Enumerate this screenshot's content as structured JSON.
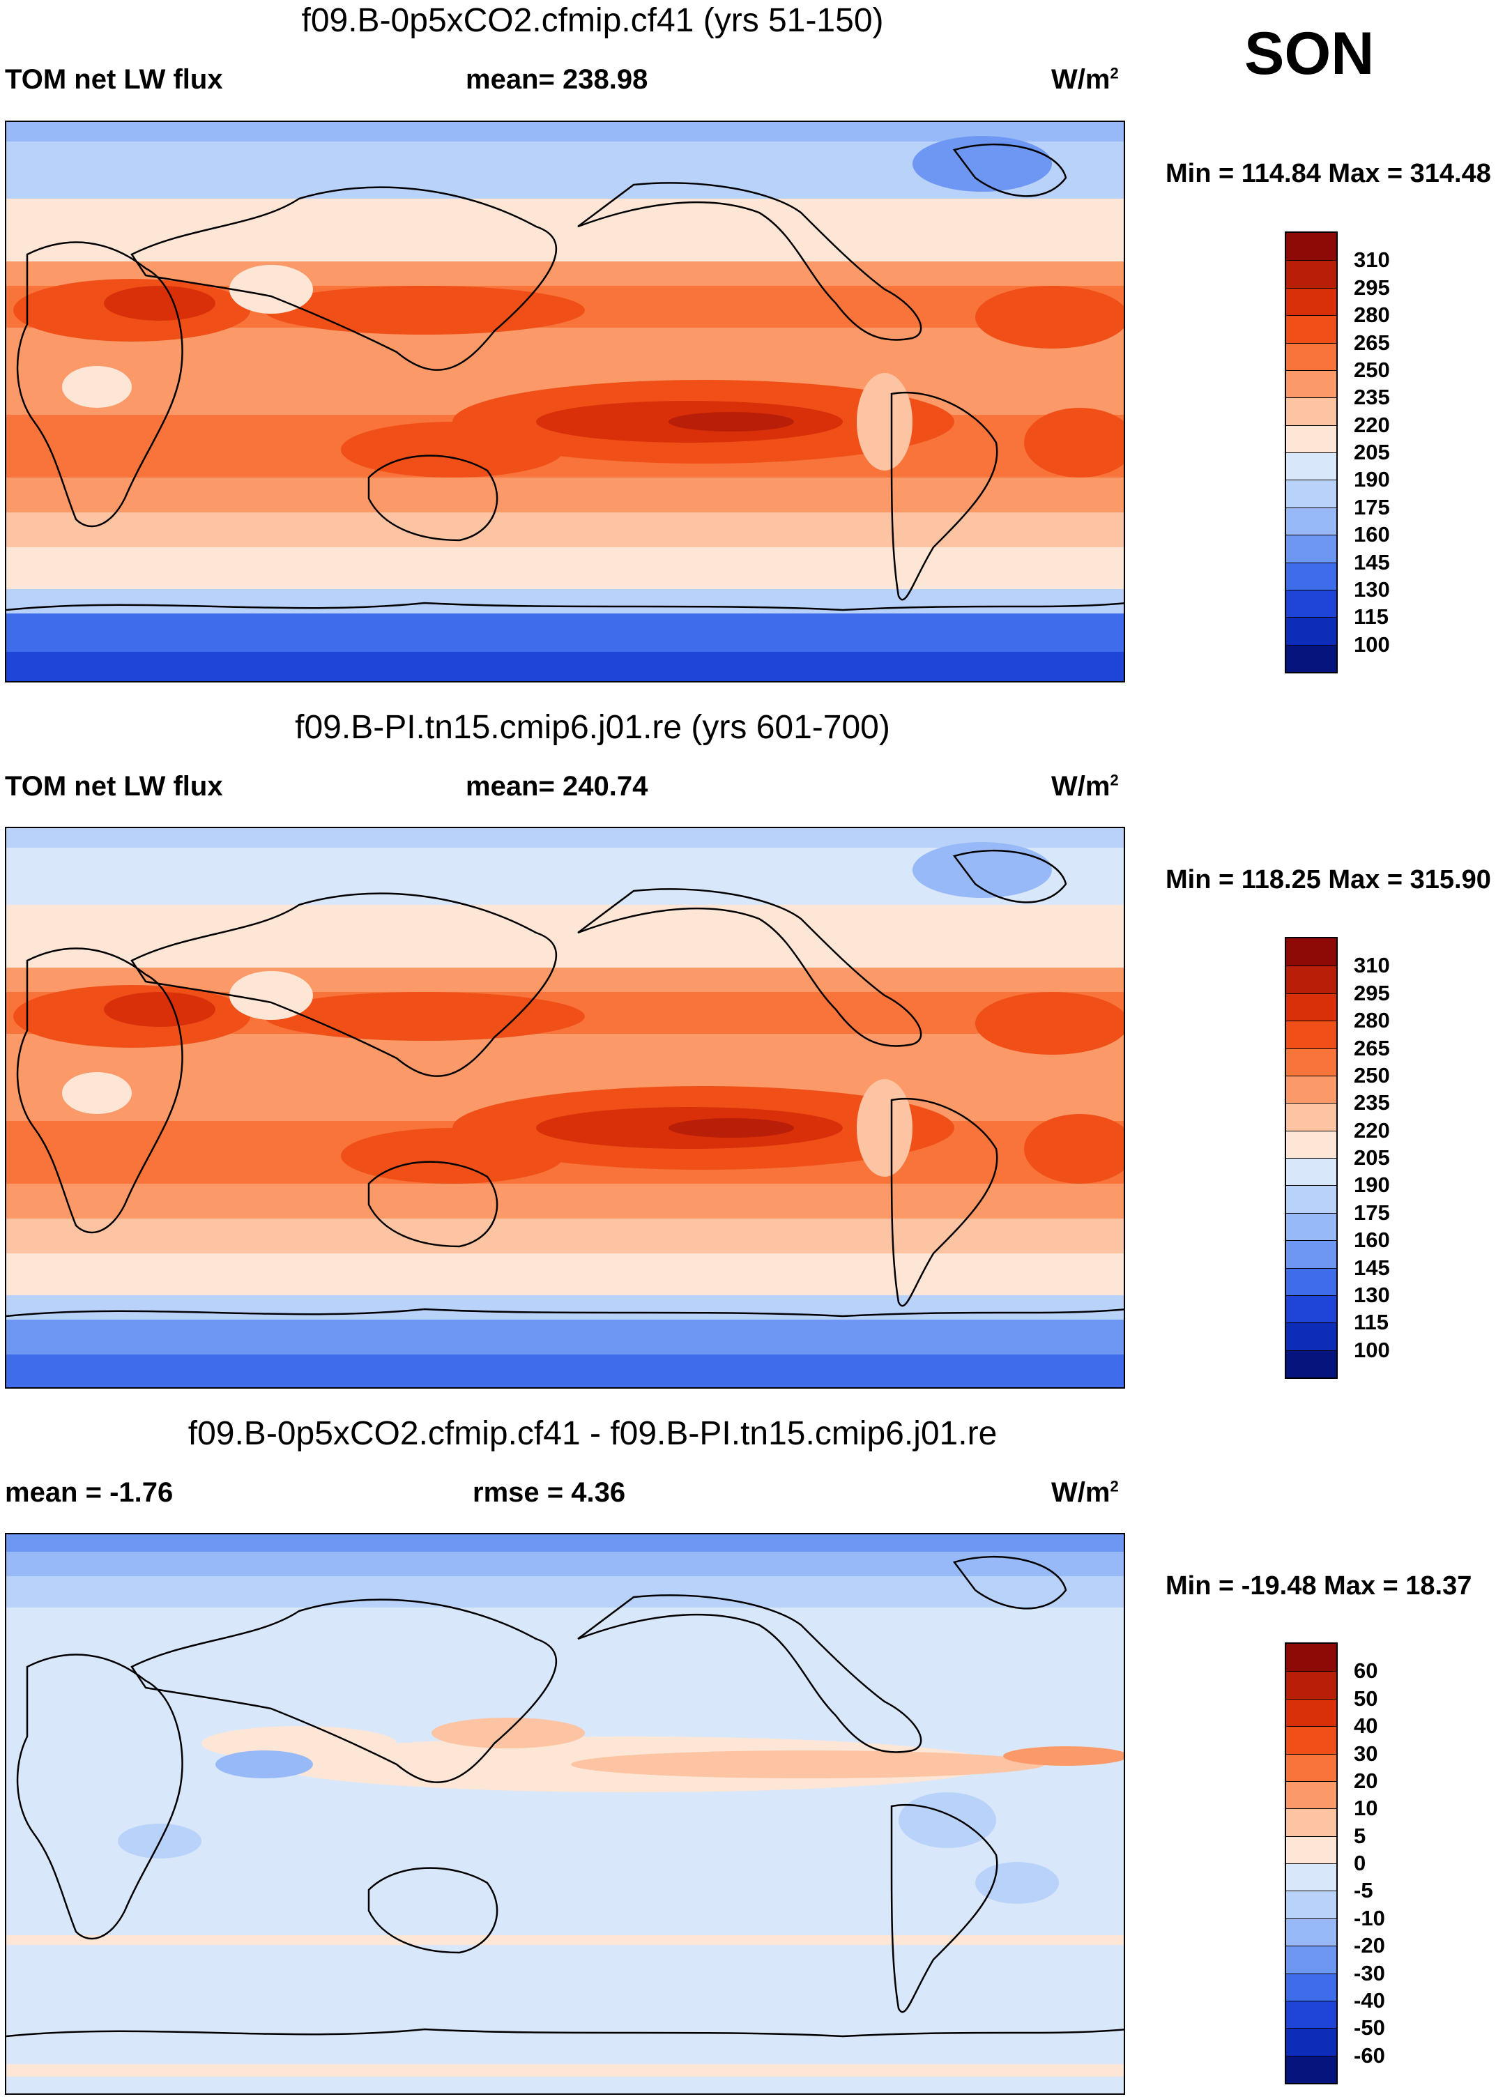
{
  "season": "SON",
  "panels": [
    {
      "id": "panel1",
      "title": "f09.B-0p5xCO2.cfmip.cf41 (yrs 51-150)",
      "left_label": "TOM net LW flux",
      "stat_label": "mean= 238.98",
      "unit_base": "W/m",
      "unit_exp": "2",
      "minmax": "Min = 114.84 Max = 314.48",
      "colorbar": {
        "labels": [
          "310",
          "295",
          "280",
          "265",
          "250",
          "235",
          "220",
          "205",
          "190",
          "175",
          "160",
          "145",
          "130",
          "115",
          "100"
        ],
        "colors": [
          "#8e0a06",
          "#b81e08",
          "#d93009",
          "#f05018",
          "#f8743a",
          "#fb9a68",
          "#fcc4a2",
          "#fde6d6",
          "#d9e7fb",
          "#b9d2fa",
          "#97b9f7",
          "#6d97f2",
          "#3f6cea",
          "#1f45d8",
          "#0d2cb8",
          "#06157e"
        ]
      }
    },
    {
      "id": "panel2",
      "title": "f09.B-PI.tn15.cmip6.j01.re (yrs 601-700)",
      "left_label": "TOM net LW flux",
      "stat_label": "mean= 240.74",
      "unit_base": "W/m",
      "unit_exp": "2",
      "minmax": "Min = 118.25 Max = 315.90",
      "colorbar": {
        "labels": [
          "310",
          "295",
          "280",
          "265",
          "250",
          "235",
          "220",
          "205",
          "190",
          "175",
          "160",
          "145",
          "130",
          "115",
          "100"
        ],
        "colors": [
          "#8e0a06",
          "#b81e08",
          "#d93009",
          "#f05018",
          "#f8743a",
          "#fb9a68",
          "#fcc4a2",
          "#fde6d6",
          "#d9e7fb",
          "#b9d2fa",
          "#97b9f7",
          "#6d97f2",
          "#3f6cea",
          "#1f45d8",
          "#0d2cb8",
          "#06157e"
        ]
      }
    },
    {
      "id": "panel3",
      "title": "f09.B-0p5xCO2.cfmip.cf41 - f09.B-PI.tn15.cmip6.j01.re",
      "left_label": "mean =  -1.76",
      "stat_label": "rmse =   4.36",
      "unit_base": "W/m",
      "unit_exp": "2",
      "minmax": "Min = -19.48 Max =  18.37",
      "colorbar": {
        "labels": [
          "60",
          "50",
          "40",
          "30",
          "20",
          "10",
          "5",
          "0",
          "-5",
          "-10",
          "-20",
          "-30",
          "-40",
          "-50",
          "-60"
        ],
        "colors": [
          "#8e0a06",
          "#b81e08",
          "#d93009",
          "#f05018",
          "#f8743a",
          "#fb9a68",
          "#fcc4a2",
          "#fde6d6",
          "#d9e7fb",
          "#b9d2fa",
          "#97b9f7",
          "#6d97f2",
          "#3f6cea",
          "#1f45d8",
          "#0d2cb8",
          "#06157e"
        ]
      }
    }
  ]
}
